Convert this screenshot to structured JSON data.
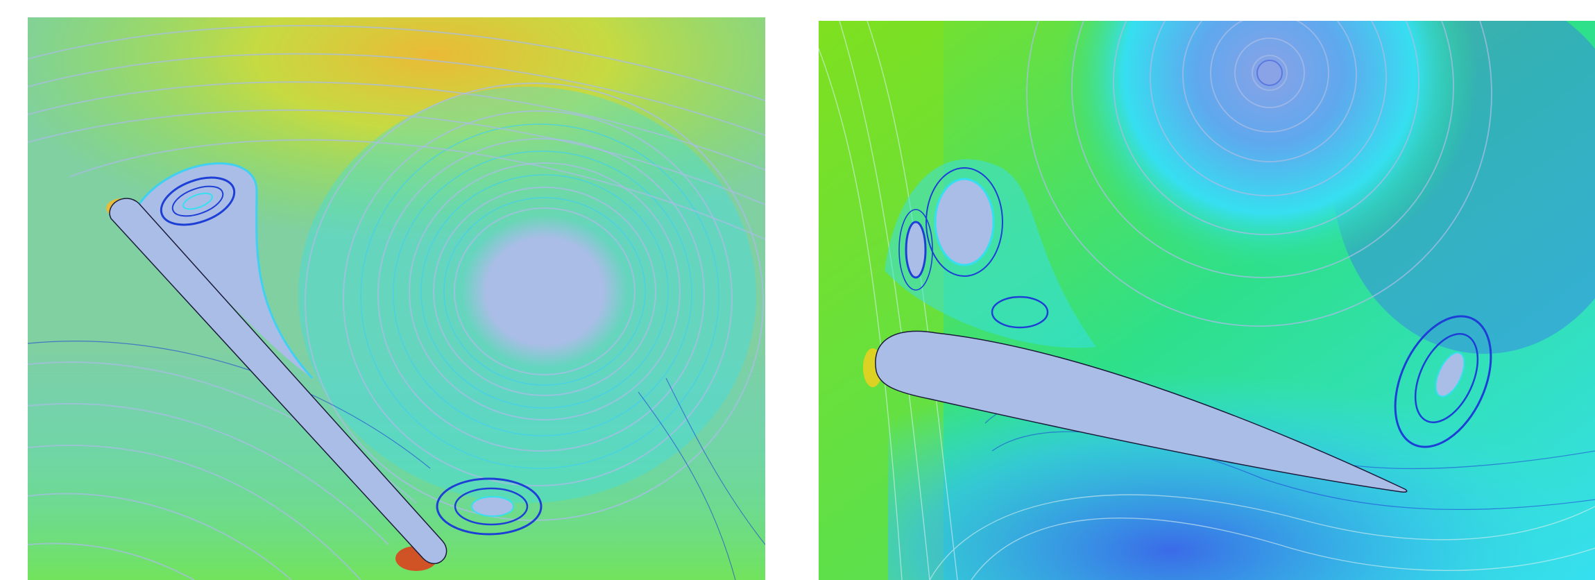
{
  "figure": {
    "panels": [
      {
        "id": "left",
        "subject": "flat-plate",
        "colors": {
          "background": "#a9bde6",
          "fast": "#f2c12e",
          "mid": "#8ee82a",
          "slow": "#36e0f0",
          "vortex": "#1e3fd6",
          "peak": "#e03a1a"
        }
      },
      {
        "id": "right",
        "subject": "airfoil",
        "colors": {
          "background": "#a9bde6",
          "fast": "#7fe020",
          "mid": "#2ee08a",
          "slow": "#36dff0",
          "vortex": "#1e3fd6",
          "peak": "#e8d020"
        }
      }
    ]
  }
}
